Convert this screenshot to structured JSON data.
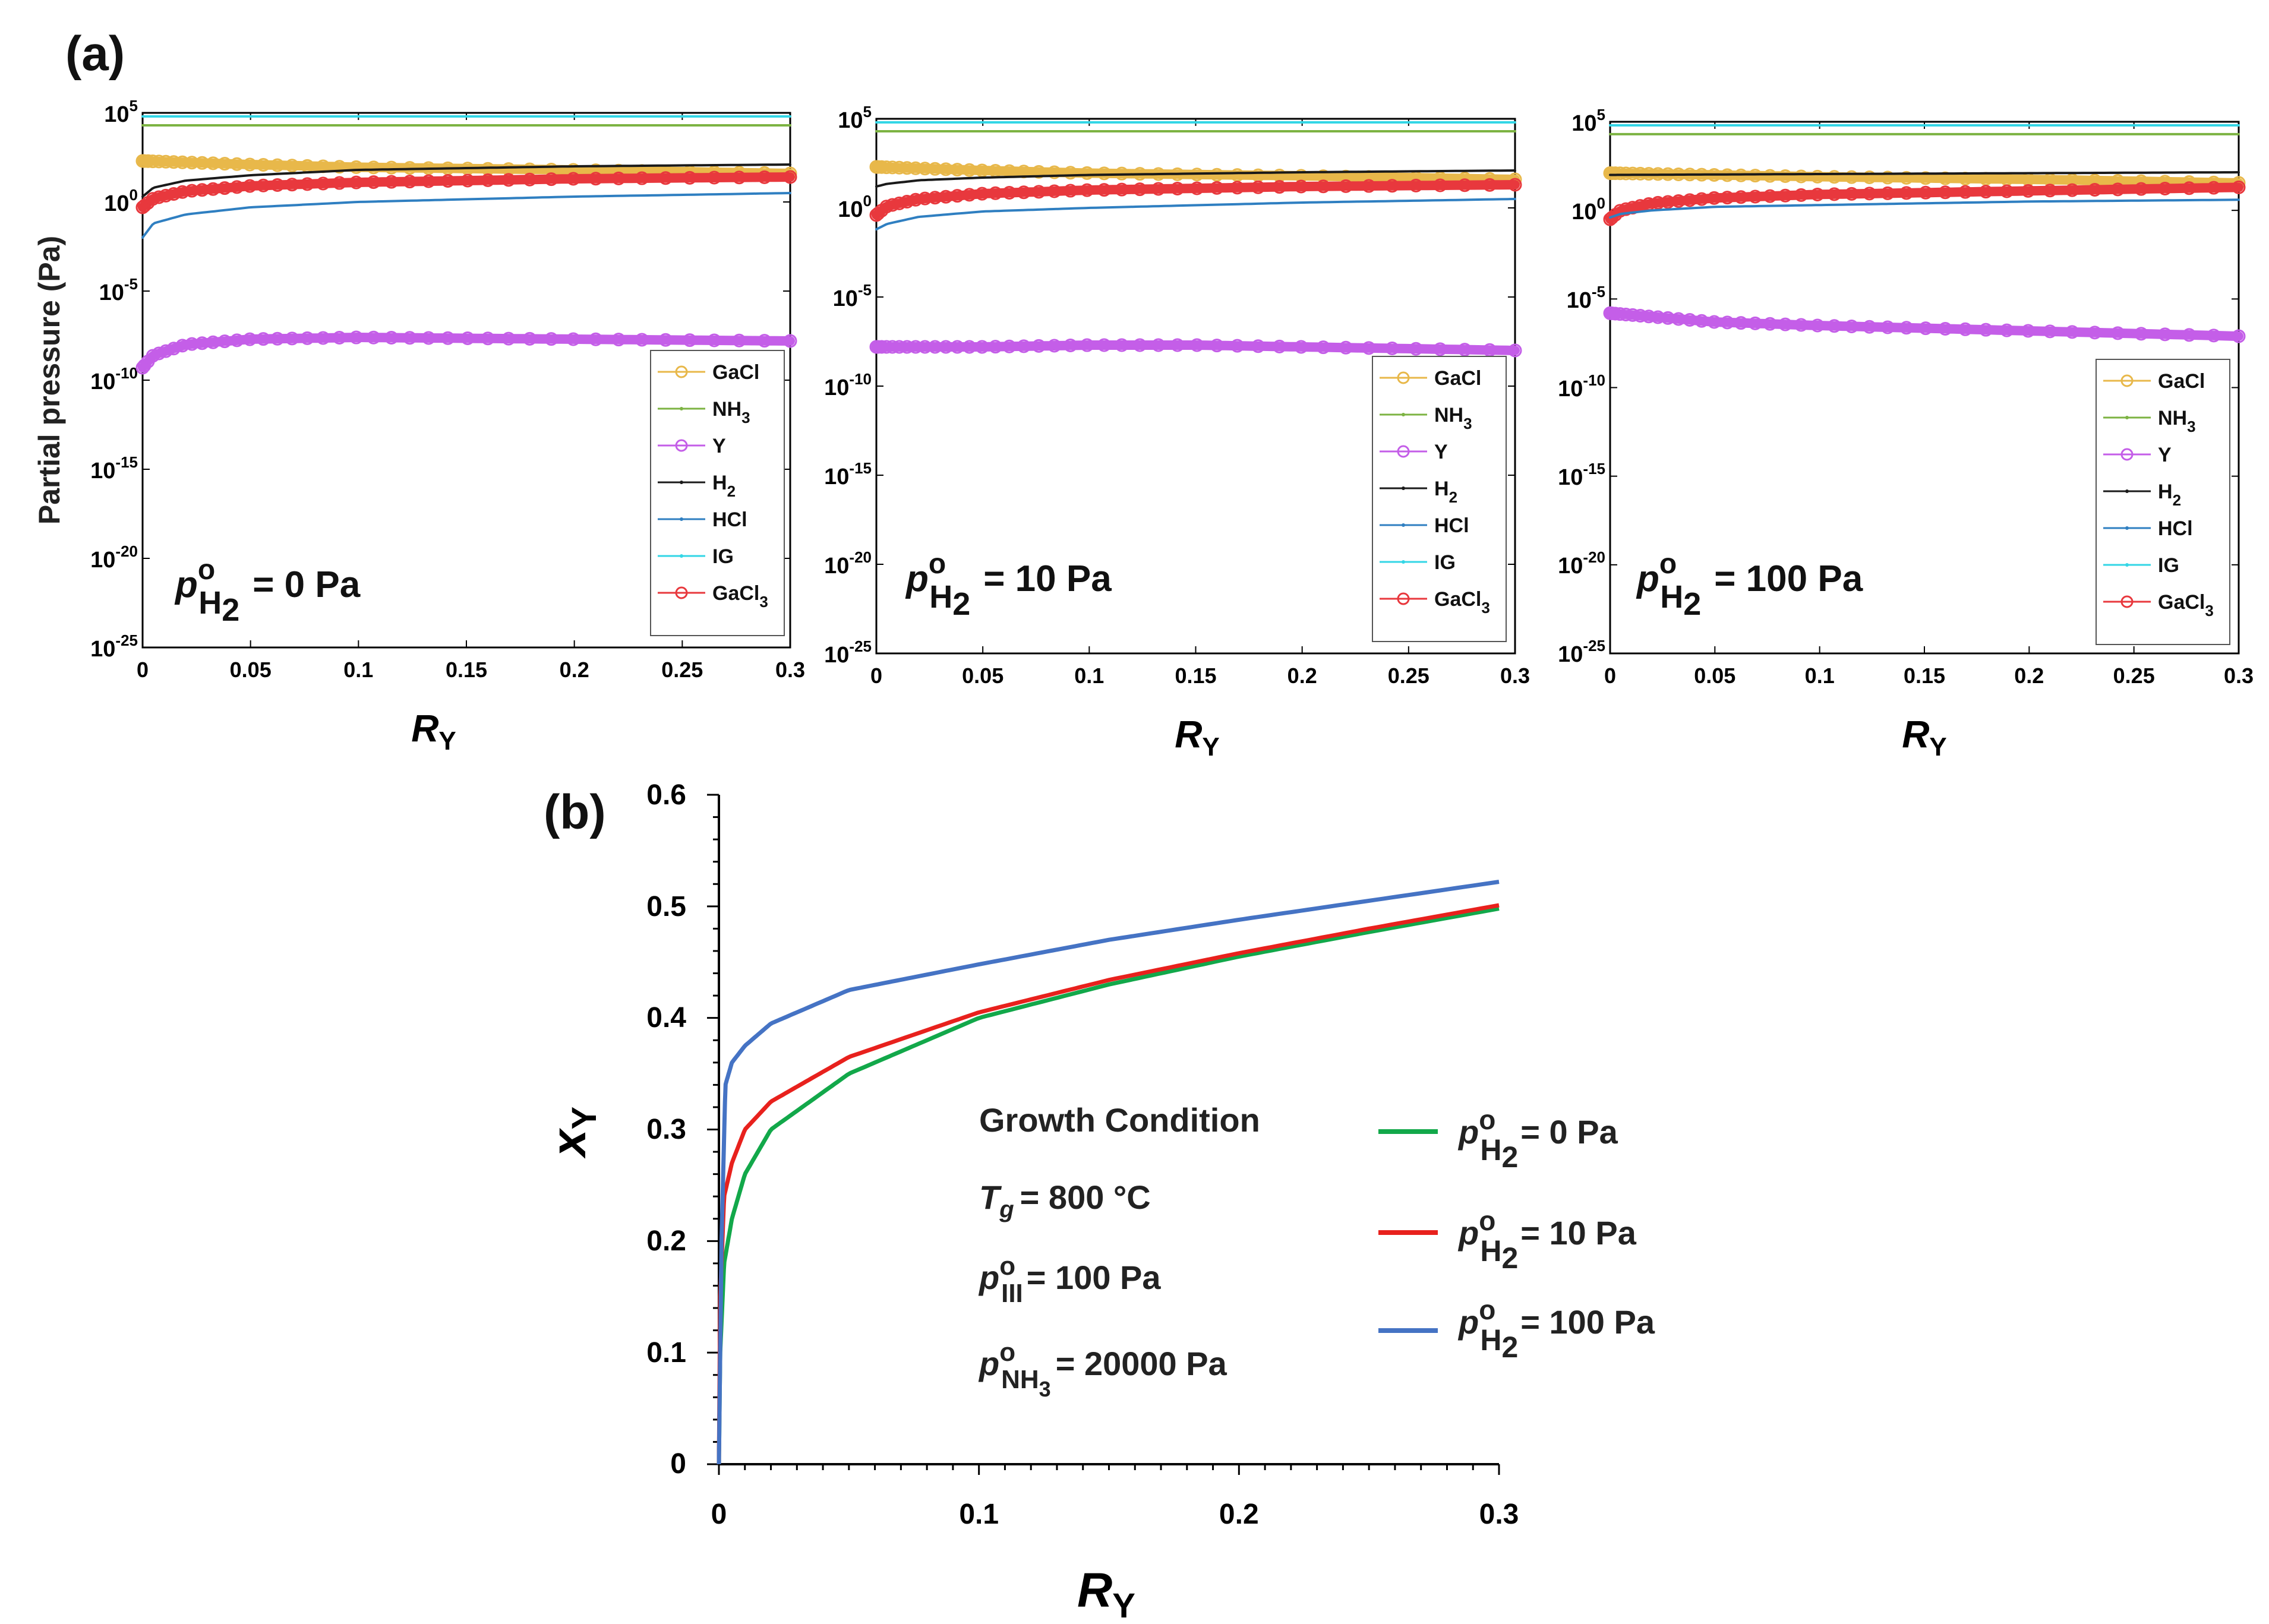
{
  "panel_a": {
    "label": "(a)",
    "ylabel": "Partial pressure (Pa)",
    "xlabel_main": "R",
    "xlabel_sub": "Y",
    "y_ticks": [
      {
        "base": "10",
        "exp": "5"
      },
      {
        "base": "10",
        "exp": "0"
      },
      {
        "base": "10",
        "exp": "-5"
      },
      {
        "base": "10",
        "exp": "-10"
      },
      {
        "base": "10",
        "exp": "-15"
      },
      {
        "base": "10",
        "exp": "-20"
      },
      {
        "base": "10",
        "exp": "-25"
      }
    ],
    "x_ticks": [
      "0",
      "0.05",
      "0.1",
      "0.15",
      "0.2",
      "0.25",
      "0.3"
    ],
    "legend": [
      {
        "main": "GaCl",
        "sub": "",
        "color": "#e8b84a",
        "marker": "circle"
      },
      {
        "main": "NH",
        "sub": "3",
        "color": "#7cb342",
        "marker": "dot"
      },
      {
        "main": "Y",
        "sub": "",
        "color": "#c45ee8",
        "marker": "circle"
      },
      {
        "main": "H",
        "sub": "2",
        "color": "#1a1a1a",
        "marker": "dot"
      },
      {
        "main": "HCl",
        "sub": "",
        "color": "#2f7fc1",
        "marker": "dot"
      },
      {
        "main": "IG",
        "sub": "",
        "color": "#33d6e6",
        "marker": "dot"
      },
      {
        "main": "GaCl",
        "sub": "3",
        "color": "#e8383d",
        "marker": "circle"
      }
    ],
    "annotation_parts": {
      "p": "p",
      "sup": "o",
      "sub": "H",
      "subsub": "2"
    },
    "subplots": [
      {
        "annotation_value": "= 0 Pa"
      },
      {
        "annotation_value": "= 10 Pa"
      },
      {
        "annotation_value": "= 100 Pa"
      }
    ]
  },
  "chart_data": [
    {
      "type": "line",
      "title": "(a) p°H2 = 0 Pa",
      "xlabel": "RY",
      "ylabel": "Partial pressure (Pa)",
      "xlim": [
        0,
        0.3
      ],
      "ylim_log10": [
        -25,
        5
      ],
      "y_scale": "log",
      "series": [
        {
          "name": "IG",
          "x": [
            0,
            0.3
          ],
          "log10_values": [
            4.8,
            4.8
          ]
        },
        {
          "name": "NH3",
          "x": [
            0,
            0.3
          ],
          "log10_values": [
            4.3,
            4.3
          ]
        },
        {
          "name": "GaCl",
          "x": [
            0,
            0.05,
            0.1,
            0.2,
            0.3
          ],
          "log10_values": [
            2.3,
            2.1,
            1.95,
            1.8,
            1.6
          ]
        },
        {
          "name": "H2",
          "x": [
            0,
            0.005,
            0.02,
            0.05,
            0.1,
            0.2,
            0.3
          ],
          "log10_values": [
            0.3,
            0.8,
            1.2,
            1.5,
            1.8,
            2.0,
            2.1
          ]
        },
        {
          "name": "GaCl3",
          "x": [
            0,
            0.005,
            0.02,
            0.05,
            0.1,
            0.2,
            0.3
          ],
          "log10_values": [
            -0.3,
            0.2,
            0.6,
            0.9,
            1.1,
            1.3,
            1.4
          ]
        },
        {
          "name": "HCl",
          "x": [
            0,
            0.005,
            0.02,
            0.05,
            0.1,
            0.2,
            0.3
          ],
          "log10_values": [
            -2.0,
            -1.2,
            -0.7,
            -0.3,
            0,
            0.3,
            0.5
          ]
        },
        {
          "name": "Y",
          "x": [
            0,
            0.005,
            0.02,
            0.05,
            0.1,
            0.2,
            0.3
          ],
          "log10_values": [
            -9.3,
            -8.6,
            -8.0,
            -7.7,
            -7.6,
            -7.7,
            -7.8
          ]
        }
      ]
    },
    {
      "type": "line",
      "title": "(a) p°H2 = 10 Pa",
      "xlabel": "RY",
      "ylabel": "Partial pressure (Pa)",
      "xlim": [
        0,
        0.3
      ],
      "ylim_log10": [
        -25,
        5
      ],
      "y_scale": "log",
      "series": [
        {
          "name": "IG",
          "x": [
            0,
            0.3
          ],
          "log10_values": [
            4.8,
            4.8
          ]
        },
        {
          "name": "NH3",
          "x": [
            0,
            0.3
          ],
          "log10_values": [
            4.3,
            4.3
          ]
        },
        {
          "name": "GaCl",
          "x": [
            0,
            0.05,
            0.1,
            0.2,
            0.3
          ],
          "log10_values": [
            2.3,
            2.1,
            1.95,
            1.8,
            1.6
          ]
        },
        {
          "name": "H2",
          "x": [
            0,
            0.005,
            0.02,
            0.05,
            0.1,
            0.2,
            0.3
          ],
          "log10_values": [
            1.2,
            1.35,
            1.55,
            1.7,
            1.85,
            2.0,
            2.1
          ]
        },
        {
          "name": "GaCl3",
          "x": [
            0,
            0.005,
            0.02,
            0.05,
            0.1,
            0.2,
            0.3
          ],
          "log10_values": [
            -0.4,
            0.1,
            0.5,
            0.8,
            1.0,
            1.2,
            1.3
          ]
        },
        {
          "name": "HCl",
          "x": [
            0,
            0.005,
            0.02,
            0.05,
            0.1,
            0.2,
            0.3
          ],
          "log10_values": [
            -1.2,
            -0.9,
            -0.5,
            -0.2,
            0,
            0.3,
            0.5
          ]
        },
        {
          "name": "Y",
          "x": [
            0,
            0.05,
            0.1,
            0.15,
            0.2,
            0.3
          ],
          "log10_values": [
            -7.8,
            -7.8,
            -7.7,
            -7.7,
            -7.8,
            -8.0
          ]
        }
      ]
    },
    {
      "type": "line",
      "title": "(a) p°H2 = 100 Pa",
      "xlabel": "RY",
      "ylabel": "Partial pressure (Pa)",
      "xlim": [
        0,
        0.3
      ],
      "ylim_log10": [
        -25,
        5
      ],
      "y_scale": "log",
      "series": [
        {
          "name": "IG",
          "x": [
            0,
            0.3
          ],
          "log10_values": [
            4.8,
            4.8
          ]
        },
        {
          "name": "NH3",
          "x": [
            0,
            0.3
          ],
          "log10_values": [
            4.3,
            4.3
          ]
        },
        {
          "name": "GaCl",
          "x": [
            0,
            0.05,
            0.1,
            0.2,
            0.3
          ],
          "log10_values": [
            2.1,
            2.0,
            1.9,
            1.75,
            1.55
          ]
        },
        {
          "name": "H2",
          "x": [
            0,
            0.1,
            0.2,
            0.3
          ],
          "log10_values": [
            2.0,
            2.05,
            2.1,
            2.15
          ]
        },
        {
          "name": "GaCl3",
          "x": [
            0,
            0.005,
            0.02,
            0.05,
            0.1,
            0.2,
            0.3
          ],
          "log10_values": [
            -0.5,
            0,
            0.4,
            0.7,
            0.9,
            1.1,
            1.3
          ]
        },
        {
          "name": "HCl",
          "x": [
            0,
            0.005,
            0.02,
            0.05,
            0.1,
            0.2,
            0.3
          ],
          "log10_values": [
            -0.4,
            -0.2,
            0,
            0.2,
            0.3,
            0.5,
            0.6
          ]
        },
        {
          "name": "Y",
          "x": [
            0,
            0.05,
            0.1,
            0.2,
            0.3
          ],
          "log10_values": [
            -5.8,
            -6.3,
            -6.5,
            -6.8,
            -7.1
          ]
        }
      ]
    },
    {
      "type": "line",
      "title": "(b)",
      "xlabel": "RY",
      "ylabel": "xY",
      "xlim": [
        0,
        0.3
      ],
      "ylim": [
        0,
        0.6
      ],
      "x_ticks": [
        "0",
        "0.1",
        "0.2",
        "0.3"
      ],
      "y_ticks": [
        "0",
        "0.1",
        "0.2",
        "0.3",
        "0.4",
        "0.5",
        "0.6"
      ],
      "series": [
        {
          "name": "p°H2 = 0 Pa",
          "color": "#12a84a",
          "x": [
            0,
            0.0005,
            0.002,
            0.005,
            0.01,
            0.02,
            0.05,
            0.1,
            0.15,
            0.2,
            0.25,
            0.3
          ],
          "values": [
            0,
            0.1,
            0.18,
            0.22,
            0.26,
            0.3,
            0.35,
            0.4,
            0.43,
            0.455,
            0.477,
            0.498
          ]
        },
        {
          "name": "p°H2 = 10 Pa",
          "color": "#e8211d",
          "x": [
            0,
            0.0005,
            0.002,
            0.005,
            0.01,
            0.02,
            0.05,
            0.1,
            0.15,
            0.2,
            0.25,
            0.3
          ],
          "values": [
            0,
            0.15,
            0.24,
            0.27,
            0.3,
            0.325,
            0.365,
            0.405,
            0.434,
            0.458,
            0.48,
            0.501
          ]
        },
        {
          "name": "p°H2 = 100 Pa",
          "color": "#4573c4",
          "x": [
            0,
            0.001,
            0.0025,
            0.005,
            0.01,
            0.02,
            0.05,
            0.1,
            0.15,
            0.2,
            0.25,
            0.3
          ],
          "values": [
            0,
            0.2,
            0.34,
            0.36,
            0.375,
            0.395,
            0.425,
            0.448,
            0.47,
            0.488,
            0.505,
            0.522
          ]
        }
      ]
    }
  ],
  "panel_b": {
    "label": "(b)",
    "ylabel_main": "x",
    "ylabel_sub": "Y",
    "xlabel_main": "R",
    "xlabel_sub": "Y",
    "x_ticks": [
      "0",
      "0.1",
      "0.2",
      "0.3"
    ],
    "y_ticks": [
      "0",
      "0.1",
      "0.2",
      "0.3",
      "0.4",
      "0.5",
      "0.6"
    ],
    "growth_title": "Growth Condition",
    "tg_T": "T",
    "tg_sub": "g",
    "tg_value": "= 800 °C",
    "piii_p": "p",
    "piii_sup": "o",
    "piii_sub": "III",
    "piii_value": "= 100 Pa",
    "pnh3_p": "p",
    "pnh3_sup": "o",
    "pnh3_sub": "NH",
    "pnh3_subsub": "3",
    "pnh3_value": "= 20000 Pa",
    "legend_parts": {
      "p": "p",
      "sup": "o",
      "sub": "H",
      "subsub": "2"
    },
    "legend": [
      {
        "value": "= 0 Pa",
        "color": "#12a84a"
      },
      {
        "value": "= 10 Pa",
        "color": "#e8211d"
      },
      {
        "value": "= 100 Pa",
        "color": "#4573c4"
      }
    ]
  }
}
